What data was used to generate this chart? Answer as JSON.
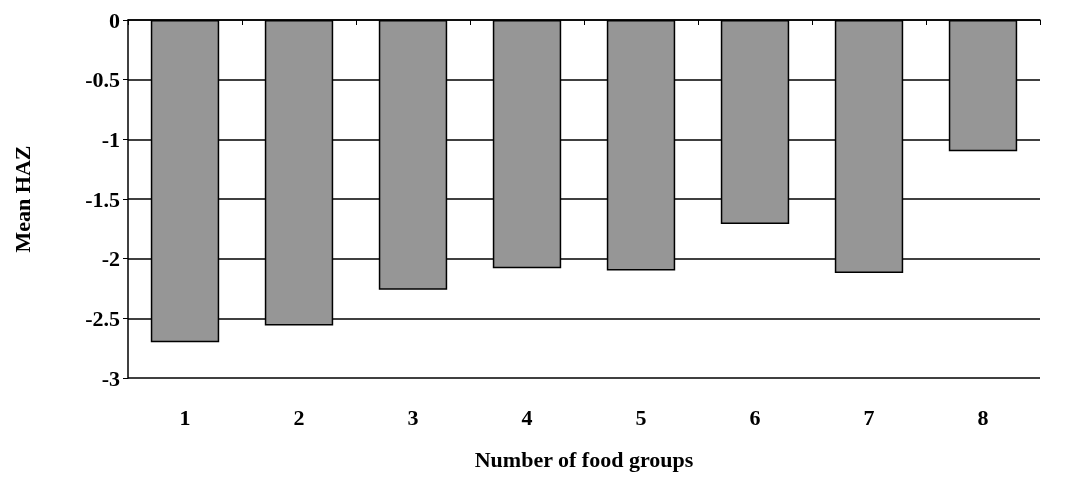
{
  "chart_data": {
    "type": "bar",
    "xlabel": "Number of food groups",
    "ylabel": "Mean HAZ",
    "categories": [
      "1",
      "2",
      "3",
      "4",
      "5",
      "6",
      "7",
      "8"
    ],
    "values": [
      -2.7,
      -2.56,
      -2.26,
      -2.08,
      -2.1,
      -1.71,
      -2.12,
      -1.1
    ],
    "color": "#969696",
    "ylim": [
      -3,
      0
    ],
    "yticks": [
      -3,
      -2.5,
      -2,
      -1.5,
      -1,
      -0.5,
      0
    ],
    "grid": "y"
  }
}
